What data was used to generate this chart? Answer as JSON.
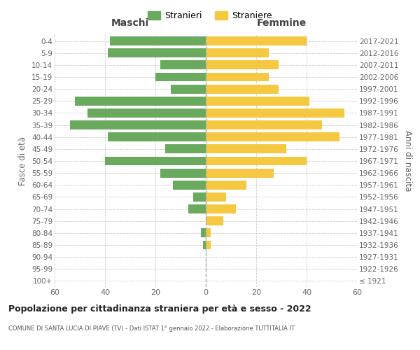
{
  "age_groups": [
    "100+",
    "95-99",
    "90-94",
    "85-89",
    "80-84",
    "75-79",
    "70-74",
    "65-69",
    "60-64",
    "55-59",
    "50-54",
    "45-49",
    "40-44",
    "35-39",
    "30-34",
    "25-29",
    "20-24",
    "15-19",
    "10-14",
    "5-9",
    "0-4"
  ],
  "birth_years": [
    "≤ 1921",
    "1922-1926",
    "1927-1931",
    "1932-1936",
    "1937-1941",
    "1942-1946",
    "1947-1951",
    "1952-1956",
    "1957-1961",
    "1962-1966",
    "1967-1971",
    "1972-1976",
    "1977-1981",
    "1982-1986",
    "1987-1991",
    "1992-1996",
    "1997-2001",
    "2002-2006",
    "2007-2011",
    "2012-2016",
    "2017-2021"
  ],
  "maschi": [
    0,
    0,
    0,
    1,
    2,
    0,
    7,
    5,
    13,
    18,
    40,
    16,
    39,
    54,
    47,
    52,
    14,
    20,
    18,
    39,
    38
  ],
  "femmine": [
    0,
    0,
    0,
    2,
    2,
    7,
    12,
    8,
    16,
    27,
    40,
    32,
    53,
    46,
    55,
    41,
    29,
    25,
    29,
    25,
    40
  ],
  "color_maschi": "#6aaa5e",
  "color_femmine": "#f5c842",
  "title": "Popolazione per cittadinanza straniera per età e sesso - 2022",
  "subtitle": "COMUNE DI SANTA LUCIA DI PIAVE (TV) - Dati ISTAT 1° gennaio 2022 - Elaborazione TUTTITALIA.IT",
  "xlabel_left": "Maschi",
  "xlabel_right": "Femmine",
  "ylabel_left": "Fasce di età",
  "ylabel_right": "Anni di nascita",
  "legend_maschi": "Stranieri",
  "legend_femmine": "Straniere",
  "xlim": 60,
  "background_color": "#ffffff",
  "grid_color": "#cccccc"
}
